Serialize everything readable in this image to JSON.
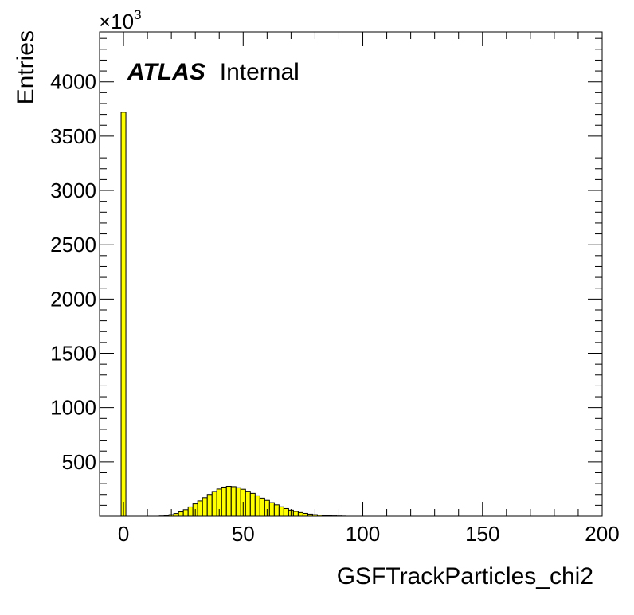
{
  "chart_data": {
    "type": "bar",
    "histogram": true,
    "xlabel": "GSFTrackParticles_chi2",
    "ylabel": "Entries",
    "y_exponent_base": "×10",
    "y_exponent_power": "3",
    "xlim": [
      -10,
      200
    ],
    "ylim": [
      0,
      4460
    ],
    "x_ticks": [
      0,
      50,
      100,
      150,
      200
    ],
    "x_tick_labels": [
      "0",
      "50",
      "100",
      "150",
      "200"
    ],
    "y_ticks": [
      500,
      1000,
      1500,
      2000,
      2500,
      3000,
      3500,
      4000
    ],
    "y_tick_labels": [
      "500",
      "1000",
      "1500",
      "2000",
      "2500",
      "3000",
      "3500",
      "4000"
    ],
    "fill_color": "#ffff00",
    "line_color": "#000000",
    "bin_width": 2,
    "bins_low_edges": [
      -1,
      15,
      17,
      19,
      21,
      23,
      25,
      27,
      29,
      31,
      33,
      35,
      37,
      39,
      41,
      43,
      45,
      47,
      49,
      51,
      53,
      55,
      57,
      59,
      61,
      63,
      65,
      67,
      69,
      71,
      73,
      75,
      77,
      79,
      81,
      83,
      85,
      87,
      89,
      91
    ],
    "values": [
      3720,
      2,
      6,
      14,
      25,
      40,
      60,
      85,
      113,
      140,
      170,
      200,
      228,
      250,
      268,
      275,
      272,
      262,
      248,
      230,
      210,
      188,
      166,
      145,
      124,
      104,
      86,
      70,
      56,
      44,
      34,
      26,
      19,
      14,
      10,
      7,
      5,
      3,
      2,
      1
    ]
  },
  "atlas_label": {
    "brand": "ATLAS",
    "status": "Internal"
  }
}
